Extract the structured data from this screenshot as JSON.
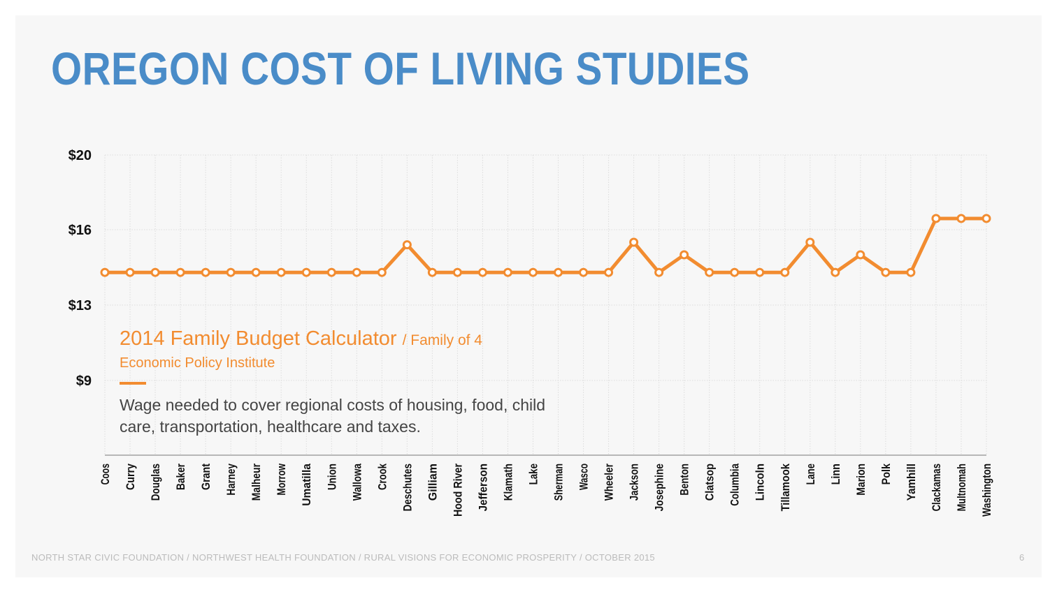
{
  "slide": {
    "title": "OREGON COST OF LIVING STUDIES",
    "footer": "NORTH STAR CIVIC FOUNDATION / NORTHWEST HEALTH FOUNDATION / RURAL VISIONS FOR ECONOMIC PROSPERITY / OCTOBER 2015",
    "page_number": "6"
  },
  "annotation": {
    "title": "2014 Family Budget Calculator",
    "subtitle": "/ Family of 4",
    "source": "Economic Policy Institute",
    "description": "Wage needed to cover regional costs of housing, food, child care, transportation, healthcare and taxes."
  },
  "colors": {
    "title": "#4a8cc8",
    "series": "#f28c30",
    "background": "#f7f7f7"
  },
  "chart_data": {
    "type": "line",
    "categories": [
      "Coos",
      "Curry",
      "Douglas",
      "Baker",
      "Grant",
      "Harney",
      "Malheur",
      "Morrow",
      "Umatilla",
      "Union",
      "Wallowa",
      "Crook",
      "Deschutes",
      "Gilliam",
      "Hood River",
      "Jefferson",
      "Klamath",
      "Lake",
      "Sherman",
      "Wasco",
      "Wheeler",
      "Jackson",
      "Josephine",
      "Benton",
      "Clatsop",
      "Columbia",
      "Lincoln",
      "Tillamook",
      "Lane",
      "Linn",
      "Marion",
      "Polk",
      "Yamhill",
      "Clackamas",
      "Multnomah",
      "Washington"
    ],
    "series": [
      {
        "values": [
          14.3,
          14.3,
          14.3,
          14.3,
          14.3,
          14.3,
          14.3,
          14.3,
          14.3,
          14.3,
          14.3,
          14.3,
          15.4,
          14.3,
          14.3,
          14.3,
          14.3,
          14.3,
          14.3,
          14.3,
          14.3,
          15.5,
          14.3,
          15.0,
          14.3,
          14.3,
          14.3,
          14.3,
          15.5,
          14.3,
          15.0,
          14.3,
          14.3,
          16.6,
          16.6,
          16.6
        ]
      }
    ],
    "y_ticks": [
      {
        "value": 20,
        "label": "$20"
      },
      {
        "value": 16,
        "label": "$16"
      },
      {
        "value": 13,
        "label": "$13"
      },
      {
        "value": 9,
        "label": "$9"
      }
    ],
    "ylim": [
      5,
      20
    ],
    "grid": true,
    "legend": "none"
  }
}
